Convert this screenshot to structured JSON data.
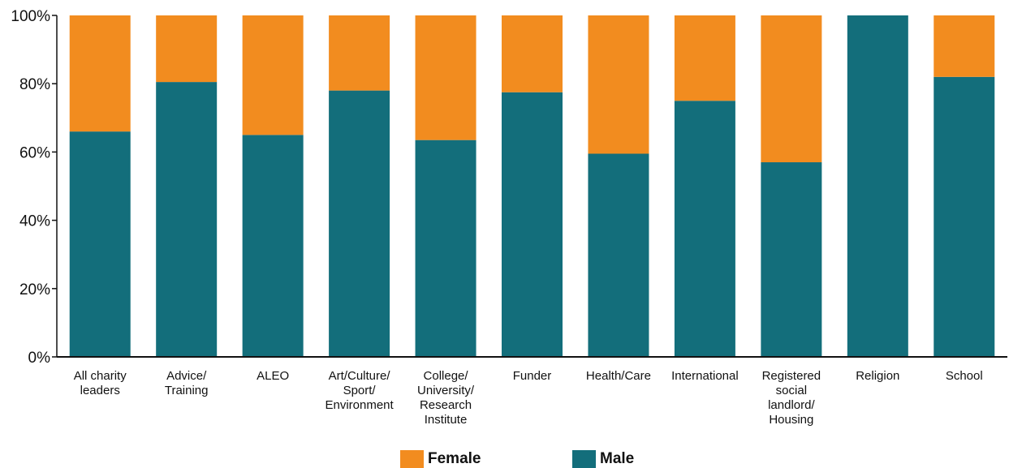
{
  "chart_data": {
    "type": "bar",
    "stacked": true,
    "categories": [
      [
        "All charity",
        "leaders"
      ],
      [
        "Advice/",
        "Training"
      ],
      [
        "ALEO"
      ],
      [
        "Art/Culture/",
        "Sport/",
        "Environment"
      ],
      [
        "College/",
        "University/",
        "Research",
        "Institute"
      ],
      [
        "Funder"
      ],
      [
        "Health/Care"
      ],
      [
        "International"
      ],
      [
        "Registered",
        "social",
        "landlord/",
        "Housing"
      ],
      [
        "Religion"
      ],
      [
        "School"
      ]
    ],
    "series": [
      {
        "name": "Male",
        "color": "#136e7b",
        "values": [
          66,
          80.5,
          65,
          78,
          63.5,
          77.5,
          59.5,
          75,
          57,
          100,
          82
        ]
      },
      {
        "name": "Female",
        "color": "#f28c1f",
        "values": [
          34,
          19.5,
          35,
          22,
          36.5,
          22.5,
          40.5,
          25,
          43,
          0,
          18
        ]
      }
    ],
    "y_ticks": [
      "0%",
      "20%",
      "40%",
      "60%",
      "80%",
      "100%"
    ],
    "ylim": [
      0,
      100
    ],
    "grid": false,
    "legend_position": "bottom"
  },
  "legend": {
    "items": [
      {
        "label": "Female",
        "color": "#f28c1f"
      },
      {
        "label": "Male",
        "color": "#136e7b"
      }
    ]
  }
}
